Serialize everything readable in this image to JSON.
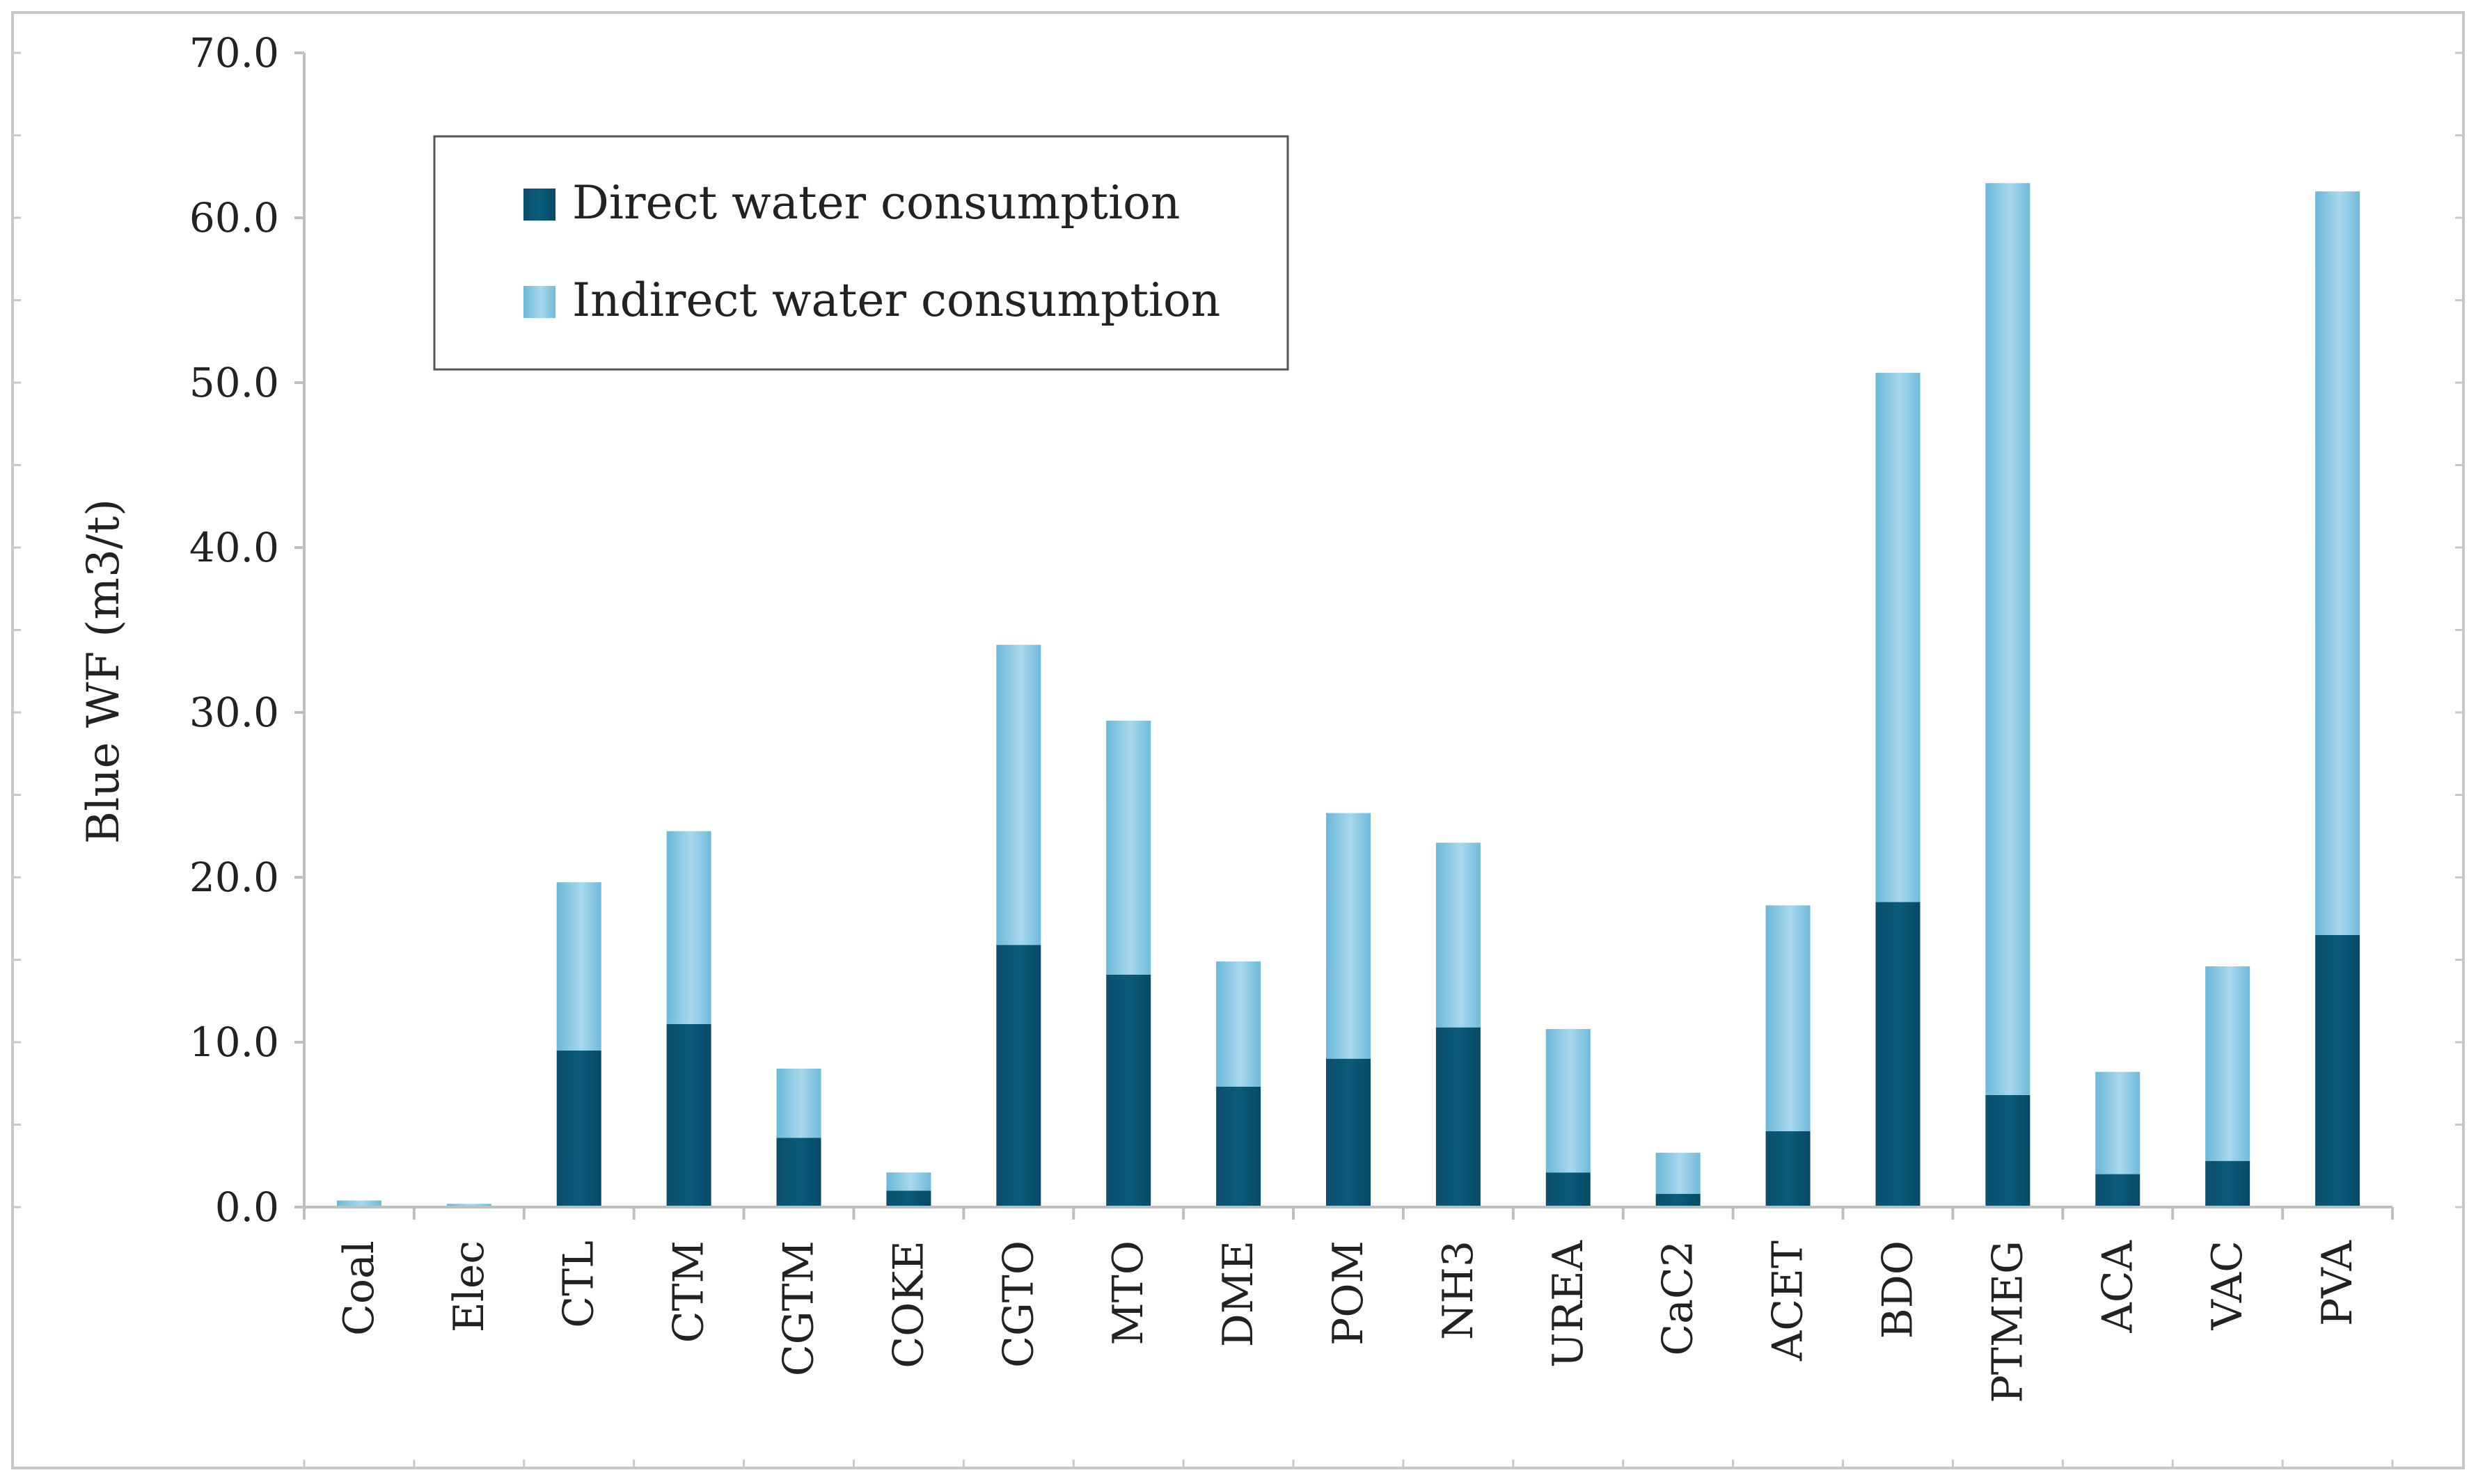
{
  "chart_data": {
    "type": "bar",
    "stacked": true,
    "ylabel": "Blue WF (m3/t)",
    "xlabel": "",
    "ylim": [
      0,
      70
    ],
    "y_ticks": [
      "0.0",
      "10.0",
      "20.0",
      "30.0",
      "40.0",
      "50.0",
      "60.0",
      "70.0"
    ],
    "categories": [
      "Coal",
      "Elec",
      "CTL",
      "CTM",
      "CGTM",
      "COKE",
      "CGTO",
      "MTO",
      "DME",
      "POM",
      "NH3",
      "UREA",
      "CaC2",
      "ACET",
      "BDO",
      "PTMEG",
      "ACA",
      "VAC",
      "PVA"
    ],
    "series": [
      {
        "name": "Direct water consumption",
        "color": "#0b4f6c",
        "values": [
          0.0,
          0.0,
          9.5,
          11.1,
          4.2,
          1.0,
          15.9,
          14.1,
          7.3,
          9.0,
          10.9,
          2.1,
          0.8,
          4.6,
          18.5,
          6.8,
          2.0,
          2.8,
          16.5
        ]
      },
      {
        "name": "Indirect water consumption",
        "color": "#7fc3df",
        "values": [
          0.4,
          0.2,
          10.2,
          11.7,
          4.2,
          1.1,
          18.2,
          15.4,
          7.6,
          14.9,
          11.2,
          8.7,
          2.5,
          13.7,
          32.1,
          55.3,
          6.2,
          11.8,
          45.1
        ]
      }
    ],
    "legend": {
      "position": "top-left",
      "entries": [
        "Direct water consumption",
        "Indirect water consumption"
      ]
    }
  }
}
